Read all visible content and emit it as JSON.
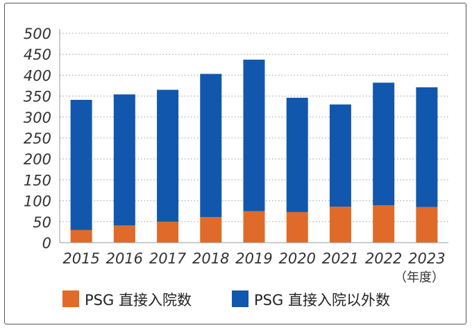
{
  "chart_data": {
    "type": "bar",
    "stacked": true,
    "categories": [
      "2015",
      "2016",
      "2017",
      "2018",
      "2019",
      "2020",
      "2021",
      "2022",
      "2023"
    ],
    "series": [
      {
        "name": "PSG 直接入院数",
        "color": "#e06a29",
        "values": [
          30,
          41,
          50,
          61,
          75,
          73,
          86,
          89,
          85
        ]
      },
      {
        "name": "PSG 直接入院以外数",
        "color": "#1157ad",
        "values": [
          311,
          313,
          315,
          342,
          362,
          273,
          244,
          293,
          286
        ]
      }
    ],
    "yticks": [
      "0",
      "50",
      "100",
      "150",
      "200",
      "250",
      "300",
      "350",
      "400",
      "450",
      "500"
    ],
    "ylim": [
      0,
      500
    ],
    "x_unit": "（年度）",
    "grid": "dotted-horizontal",
    "legend_position": "bottom"
  }
}
